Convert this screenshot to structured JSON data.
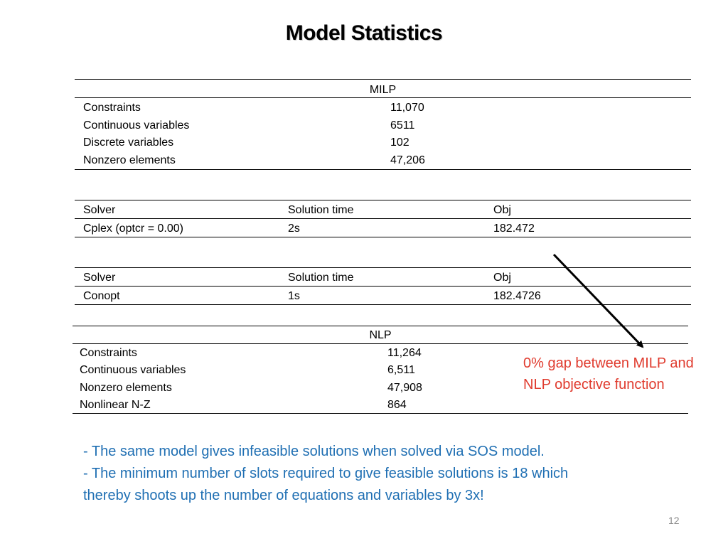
{
  "title": "Model Statistics",
  "milp_stats": {
    "header": "MILP",
    "rows": [
      {
        "label": "Constraints",
        "value": "11,070"
      },
      {
        "label": "Continuous variables",
        "value": "6511"
      },
      {
        "label": "Discrete variables",
        "value": "102"
      },
      {
        "label": "Nonzero elements",
        "value": "47,206"
      }
    ]
  },
  "milp_solver": {
    "columns": [
      "Solver",
      "Solution time",
      "Obj"
    ],
    "row": [
      "Cplex (optcr = 0.00)",
      "2s",
      "182.472"
    ]
  },
  "nlp_solver": {
    "columns": [
      "Solver",
      "Solution time",
      "Obj"
    ],
    "row": [
      "Conopt",
      "1s",
      "182.4726"
    ]
  },
  "nlp_stats": {
    "header": "NLP",
    "rows": [
      {
        "label": "Constraints",
        "value": "11,264"
      },
      {
        "label": "Continuous variables",
        "value": "6,511"
      },
      {
        "label": "Nonzero elements",
        "value": "47,908"
      },
      {
        "label": "Nonlinear N-Z",
        "value": "864"
      }
    ]
  },
  "annotation": {
    "line1": "0% gap between MILP and",
    "line2": "NLP objective function",
    "color": "#e03b2e"
  },
  "notes": [
    "- The same model gives infeasible solutions when solved via SOS model.",
    "- The minimum number of slots required to give feasible solutions is 18 which",
    "thereby shoots up the number of equations and variables by 3x!"
  ],
  "page_number": "12"
}
